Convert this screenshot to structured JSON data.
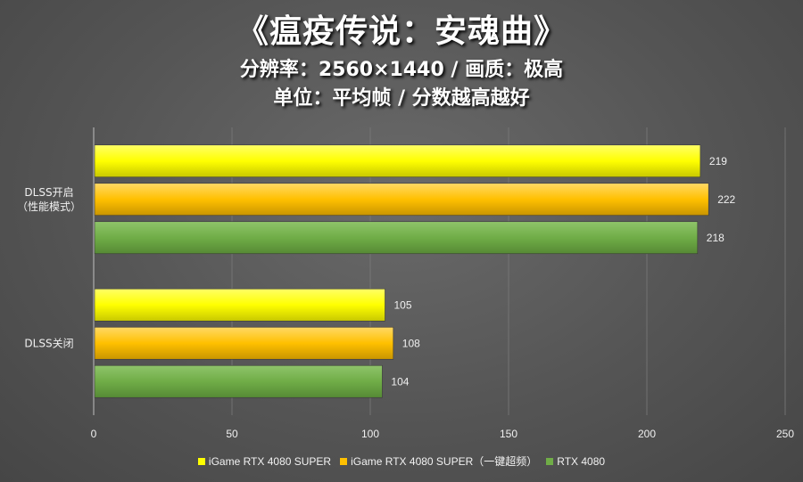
{
  "header": {
    "title": "《瘟疫传说：安魂曲》",
    "subtitle1": "分辨率：2560×1440 / 画质：极高",
    "subtitle2": "单位：平均帧 / 分数越高越好"
  },
  "colors": {
    "series1": "#ffff00",
    "series2": "#ffc000",
    "series3": "#70ad47"
  },
  "chart_data": {
    "type": "bar",
    "orientation": "horizontal",
    "categories": [
      "DLSS开启\n（性能模式）",
      "DLSS关闭"
    ],
    "series": [
      {
        "name": "iGame RTX 4080 SUPER",
        "values": [
          219,
          105
        ]
      },
      {
        "name": "iGame RTX 4080 SUPER（一键超频）",
        "values": [
          222,
          108
        ]
      },
      {
        "name": "RTX 4080",
        "values": [
          218,
          104
        ]
      }
    ],
    "xlim": [
      0,
      250
    ],
    "xticks": [
      0,
      50,
      100,
      150,
      200,
      250
    ],
    "grid": true,
    "legend": "bottom"
  }
}
